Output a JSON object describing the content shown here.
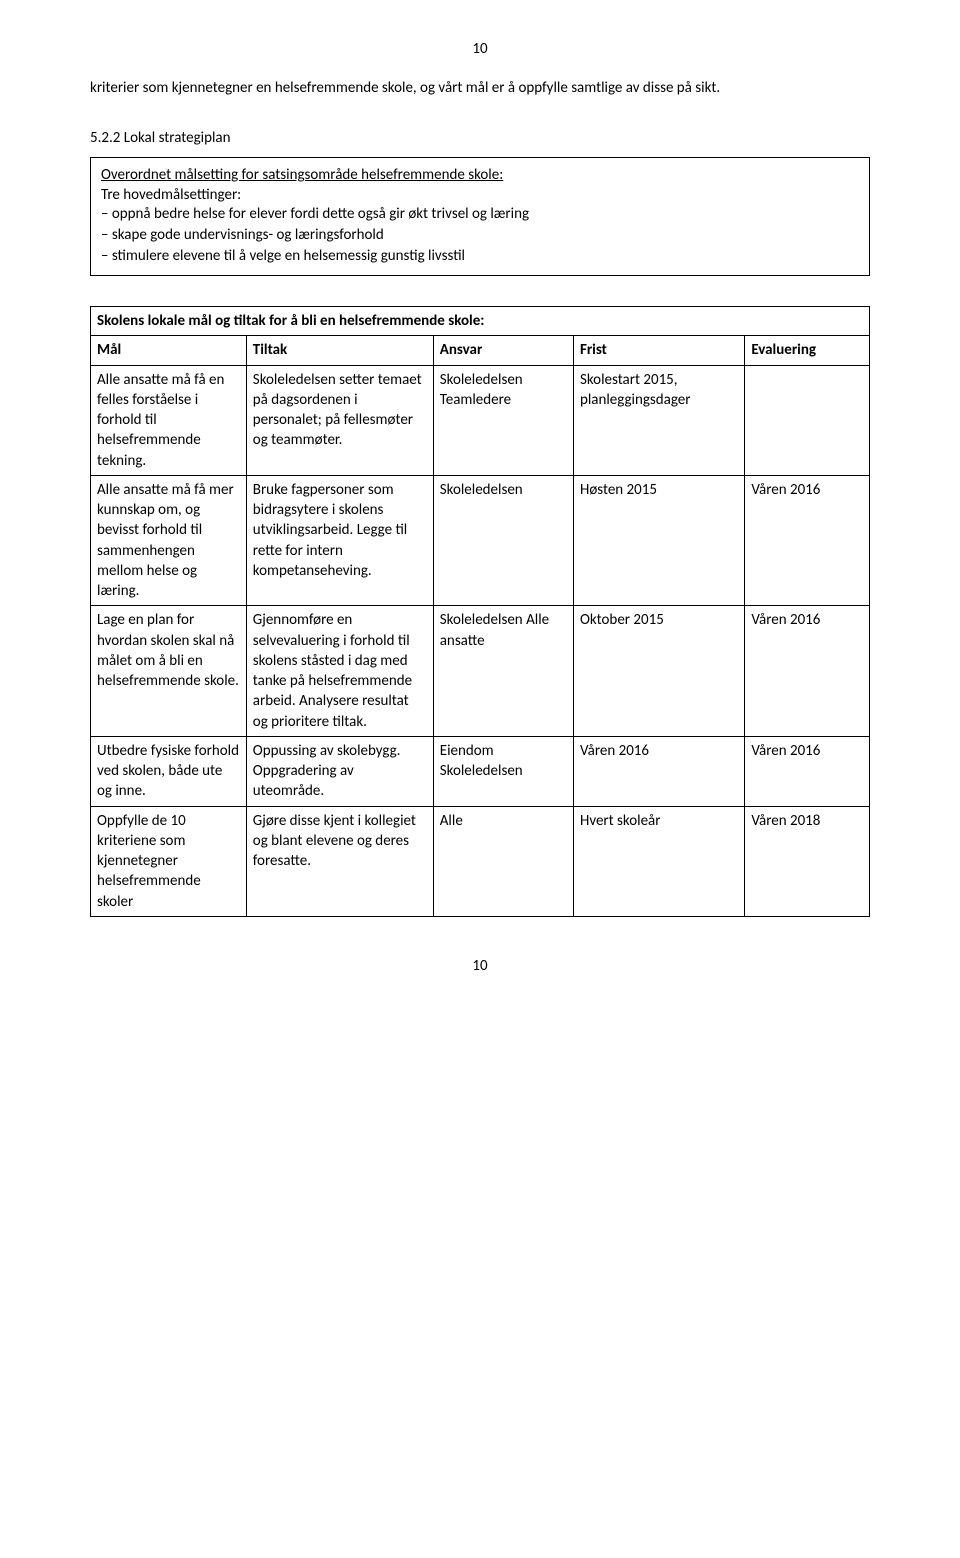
{
  "page_number_top": "10",
  "page_number_bottom": "10",
  "intro_text": "kriterier som kjennetegner en helsefremmende skole, og vårt mål er å oppfylle samtlige av disse på sikt.",
  "section_heading": "5.2.2 Lokal strategiplan",
  "box": {
    "title": "Overordnet målsetting for satsingsområde helsefremmende skole:",
    "subtitle": "Tre hovedmålsettinger:",
    "items": [
      "– oppnå bedre helse for elever fordi dette også gir økt trivsel og læring",
      "– skape gode undervisnings- og læringsforhold",
      "– stimulere elevene til å velge en helsemessig gunstig livsstil"
    ]
  },
  "table": {
    "caption": "Skolens lokale mål og tiltak for å bli en helsefremmende skole:",
    "headers": [
      "Mål",
      "Tiltak",
      "Ansvar",
      "Frist",
      "Evaluering"
    ],
    "rows": [
      {
        "mal": "Alle ansatte må få en felles forståelse i forhold til helsefremmende tekning.",
        "tiltak": "Skoleledelsen setter temaet på dagsordenen i personalet; på fellesmøter og teammøter.",
        "ansvar": "Skoleledelsen Teamledere",
        "frist": "Skolestart 2015, planleggingsdager",
        "evaluering": ""
      },
      {
        "mal": "Alle ansatte må få mer kunnskap om, og bevisst forhold til sammenhengen mellom helse og læring.",
        "tiltak": "Bruke fagpersoner som bidragsytere i skolens utviklingsarbeid. Legge til rette for intern kompetanseheving.",
        "ansvar": "Skoleledelsen",
        "frist": "Høsten 2015",
        "evaluering": "Våren 2016"
      },
      {
        "mal": "Lage en plan for hvordan skolen skal nå målet om å bli en helsefremmende skole.",
        "tiltak": "Gjennomføre en selvevaluering i forhold til skolens ståsted i dag med tanke på helsefremmende arbeid. Analysere resultat og prioritere tiltak.",
        "ansvar": "Skoleledelsen Alle ansatte",
        "frist": "Oktober 2015",
        "evaluering": "Våren 2016"
      },
      {
        "mal": "Utbedre fysiske forhold ved skolen, både ute og inne.",
        "tiltak": "Oppussing av skolebygg. Oppgradering av uteområde.",
        "ansvar": "Eiendom Skoleledelsen",
        "frist": "Våren 2016",
        "evaluering": "Våren 2016"
      },
      {
        "mal": "Oppfylle de 10 kriteriene som kjennetegner helsefremmende skoler",
        "tiltak": "Gjøre disse kjent i kollegiet og blant elevene og deres foresatte.",
        "ansvar": "Alle",
        "frist": "Hvert skoleår",
        "evaluering": "Våren 2018"
      }
    ]
  }
}
